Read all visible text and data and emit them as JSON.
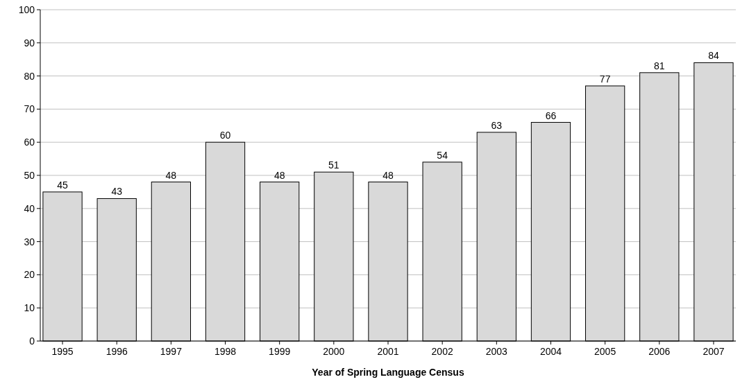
{
  "chart_data": {
    "type": "bar",
    "xlabel": "Year of Spring Language Census",
    "categories": [
      "1995",
      "1996",
      "1997",
      "1998",
      "1999",
      "2000",
      "2001",
      "2002",
      "2003",
      "2004",
      "2005",
      "2006",
      "2007"
    ],
    "values": [
      45,
      43,
      48,
      60,
      48,
      51,
      48,
      54,
      63,
      66,
      77,
      81,
      84
    ],
    "color": "#d9d9d9",
    "ylim": [
      0,
      100
    ],
    "yticks": [
      0,
      10,
      20,
      30,
      40,
      50,
      60,
      70,
      80,
      90,
      100
    ],
    "grid": "y",
    "data_labels": true
  }
}
